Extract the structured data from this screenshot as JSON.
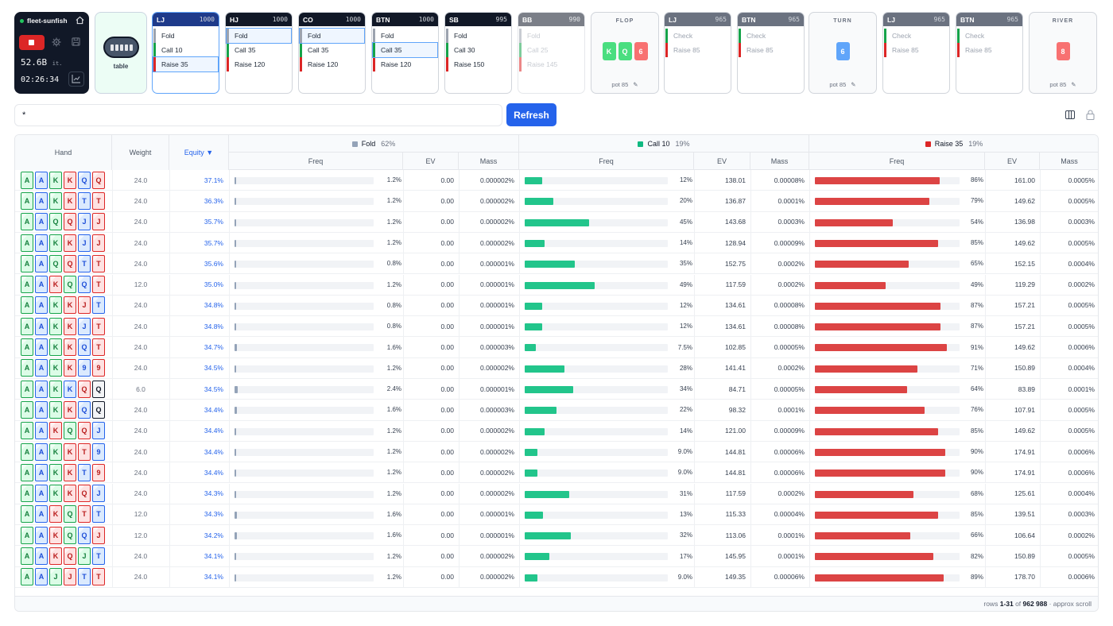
{
  "app": {
    "name": "fleet-sunfish",
    "speed": "52.6B",
    "speed_unit": "it.",
    "clock": "02:26:34"
  },
  "table_label": "table",
  "players": [
    {
      "pos": "LJ",
      "stack": "1000",
      "options": [
        "Fold",
        "Call 10",
        "Raise 35"
      ],
      "selected": 2,
      "active": true,
      "faded": false
    },
    {
      "pos": "HJ",
      "stack": "1000",
      "options": [
        "Fold",
        "Call 35",
        "Raise 120"
      ],
      "selected": 0,
      "active": false,
      "faded": false
    },
    {
      "pos": "CO",
      "stack": "1000",
      "options": [
        "Fold",
        "Call 35",
        "Raise 120"
      ],
      "selected": 0,
      "active": false,
      "faded": false
    },
    {
      "pos": "BTN",
      "stack": "1000",
      "options": [
        "Fold",
        "Call 35",
        "Raise 120"
      ],
      "selected": 1,
      "active": false,
      "faded": false
    },
    {
      "pos": "SB",
      "stack": "995",
      "options": [
        "Fold",
        "Call 30",
        "Raise 150"
      ],
      "selected": -1,
      "active": false,
      "faded": false
    },
    {
      "pos": "BB",
      "stack": "990",
      "options": [
        "Fold",
        "Call 25",
        "Raise 145"
      ],
      "selected": -1,
      "active": false,
      "faded": true
    }
  ],
  "flop": {
    "label": "FLOP",
    "cards": [
      {
        "rank": "K",
        "color": "#4ade80"
      },
      {
        "rank": "Q",
        "color": "#4ade80"
      },
      {
        "rank": "6",
        "color": "#f87171"
      }
    ],
    "pot": "pot 85"
  },
  "flop_players": [
    {
      "pos": "LJ",
      "stack": "965",
      "options": [
        "Check",
        "Raise 85"
      ]
    },
    {
      "pos": "BTN",
      "stack": "965",
      "options": [
        "Check",
        "Raise 85"
      ]
    }
  ],
  "turn": {
    "label": "TURN",
    "cards": [
      {
        "rank": "6",
        "color": "#60a5fa"
      }
    ],
    "pot": "pot 85"
  },
  "turn_players": [
    {
      "pos": "LJ",
      "stack": "965",
      "options": [
        "Check",
        "Raise 85"
      ]
    },
    {
      "pos": "BTN",
      "stack": "965",
      "options": [
        "Check",
        "Raise 85"
      ]
    }
  ],
  "river": {
    "label": "RIVER",
    "cards": [
      {
        "rank": "8",
        "color": "#f87171"
      }
    ],
    "pot": "pot 85"
  },
  "search": {
    "value": "*"
  },
  "refresh_label": "Refresh",
  "columns": {
    "hand": "Hand",
    "weight": "Weight",
    "equity": "Equity ▼",
    "groups": [
      {
        "label": "Fold",
        "pct": "62%",
        "color": "#94a3b8"
      },
      {
        "label": "Call 10",
        "pct": "19%",
        "color": "#10b981"
      },
      {
        "label": "Raise 35",
        "pct": "19%",
        "color": "#dc2626"
      }
    ],
    "freq": "Freq",
    "ev": "EV",
    "mass": "Mass"
  },
  "colors": {
    "fold": "#94a3b8",
    "call": "#22c58b",
    "raise": "#dc4444"
  },
  "rows": [
    {
      "cards": [
        [
          "A",
          "s"
        ],
        [
          "A",
          "d"
        ],
        [
          "K",
          "s"
        ],
        [
          "K",
          "h"
        ],
        [
          "Q",
          "d"
        ],
        [
          "Q",
          "h"
        ]
      ],
      "w": "24.0",
      "eq": "37.1%",
      "f": 1.2,
      "fl": "1.2%",
      "fev": "0.00",
      "fm": "0.000002%",
      "c": 12,
      "cl": "12%",
      "cev": "138.01",
      "cm": "0.00008%",
      "r": 86,
      "rl": "86%",
      "rev": "161.00",
      "rm": "0.0005%"
    },
    {
      "cards": [
        [
          "A",
          "s"
        ],
        [
          "A",
          "d"
        ],
        [
          "K",
          "s"
        ],
        [
          "K",
          "h"
        ],
        [
          "T",
          "d"
        ],
        [
          "T",
          "h"
        ]
      ],
      "w": "24.0",
      "eq": "36.3%",
      "f": 1.2,
      "fl": "1.2%",
      "fev": "0.00",
      "fm": "0.000002%",
      "c": 20,
      "cl": "20%",
      "cev": "136.87",
      "cm": "0.0001%",
      "r": 79,
      "rl": "79%",
      "rev": "149.62",
      "rm": "0.0005%"
    },
    {
      "cards": [
        [
          "A",
          "s"
        ],
        [
          "A",
          "d"
        ],
        [
          "Q",
          "s"
        ],
        [
          "Q",
          "h"
        ],
        [
          "J",
          "d"
        ],
        [
          "J",
          "h"
        ]
      ],
      "w": "24.0",
      "eq": "35.7%",
      "f": 1.2,
      "fl": "1.2%",
      "fev": "0.00",
      "fm": "0.000002%",
      "c": 45,
      "cl": "45%",
      "cev": "143.68",
      "cm": "0.0003%",
      "r": 54,
      "rl": "54%",
      "rev": "136.98",
      "rm": "0.0003%"
    },
    {
      "cards": [
        [
          "A",
          "s"
        ],
        [
          "A",
          "d"
        ],
        [
          "K",
          "s"
        ],
        [
          "K",
          "h"
        ],
        [
          "J",
          "d"
        ],
        [
          "J",
          "h"
        ]
      ],
      "w": "24.0",
      "eq": "35.7%",
      "f": 1.2,
      "fl": "1.2%",
      "fev": "0.00",
      "fm": "0.000002%",
      "c": 14,
      "cl": "14%",
      "cev": "128.94",
      "cm": "0.00009%",
      "r": 85,
      "rl": "85%",
      "rev": "149.62",
      "rm": "0.0005%"
    },
    {
      "cards": [
        [
          "A",
          "s"
        ],
        [
          "A",
          "d"
        ],
        [
          "Q",
          "s"
        ],
        [
          "Q",
          "h"
        ],
        [
          "T",
          "d"
        ],
        [
          "T",
          "h"
        ]
      ],
      "w": "24.0",
      "eq": "35.6%",
      "f": 0.8,
      "fl": "0.8%",
      "fev": "0.00",
      "fm": "0.000001%",
      "c": 35,
      "cl": "35%",
      "cev": "152.75",
      "cm": "0.0002%",
      "r": 65,
      "rl": "65%",
      "rev": "152.15",
      "rm": "0.0004%"
    },
    {
      "cards": [
        [
          "A",
          "s"
        ],
        [
          "A",
          "d"
        ],
        [
          "K",
          "h"
        ],
        [
          "Q",
          "s"
        ],
        [
          "Q",
          "d"
        ],
        [
          "T",
          "h"
        ]
      ],
      "w": "12.0",
      "eq": "35.0%",
      "f": 1.2,
      "fl": "1.2%",
      "fev": "0.00",
      "fm": "0.000001%",
      "c": 49,
      "cl": "49%",
      "cev": "117.59",
      "cm": "0.0002%",
      "r": 49,
      "rl": "49%",
      "rev": "119.29",
      "rm": "0.0002%"
    },
    {
      "cards": [
        [
          "A",
          "s"
        ],
        [
          "A",
          "d"
        ],
        [
          "K",
          "s"
        ],
        [
          "K",
          "h"
        ],
        [
          "J",
          "h"
        ],
        [
          "T",
          "d"
        ]
      ],
      "w": "24.0",
      "eq": "34.8%",
      "f": 0.8,
      "fl": "0.8%",
      "fev": "0.00",
      "fm": "0.000001%",
      "c": 12,
      "cl": "12%",
      "cev": "134.61",
      "cm": "0.00008%",
      "r": 87,
      "rl": "87%",
      "rev": "157.21",
      "rm": "0.0005%"
    },
    {
      "cards": [
        [
          "A",
          "s"
        ],
        [
          "A",
          "d"
        ],
        [
          "K",
          "s"
        ],
        [
          "K",
          "h"
        ],
        [
          "J",
          "d"
        ],
        [
          "T",
          "h"
        ]
      ],
      "w": "24.0",
      "eq": "34.8%",
      "f": 0.8,
      "fl": "0.8%",
      "fev": "0.00",
      "fm": "0.000001%",
      "c": 12,
      "cl": "12%",
      "cev": "134.61",
      "cm": "0.00008%",
      "r": 87,
      "rl": "87%",
      "rev": "157.21",
      "rm": "0.0005%"
    },
    {
      "cards": [
        [
          "A",
          "s"
        ],
        [
          "A",
          "d"
        ],
        [
          "K",
          "s"
        ],
        [
          "K",
          "h"
        ],
        [
          "Q",
          "d"
        ],
        [
          "T",
          "h"
        ]
      ],
      "w": "24.0",
      "eq": "34.7%",
      "f": 1.6,
      "fl": "1.6%",
      "fev": "0.00",
      "fm": "0.000003%",
      "c": 7.5,
      "cl": "7.5%",
      "cev": "102.85",
      "cm": "0.00005%",
      "r": 91,
      "rl": "91%",
      "rev": "149.62",
      "rm": "0.0006%"
    },
    {
      "cards": [
        [
          "A",
          "s"
        ],
        [
          "A",
          "d"
        ],
        [
          "K",
          "s"
        ],
        [
          "K",
          "h"
        ],
        [
          "9",
          "d"
        ],
        [
          "9",
          "h"
        ]
      ],
      "w": "24.0",
      "eq": "34.5%",
      "f": 1.2,
      "fl": "1.2%",
      "fev": "0.00",
      "fm": "0.000002%",
      "c": 28,
      "cl": "28%",
      "cev": "141.41",
      "cm": "0.0002%",
      "r": 71,
      "rl": "71%",
      "rev": "150.89",
      "rm": "0.0004%"
    },
    {
      "cards": [
        [
          "A",
          "s"
        ],
        [
          "A",
          "d"
        ],
        [
          "K",
          "s"
        ],
        [
          "K",
          "d"
        ],
        [
          "Q",
          "h"
        ],
        [
          "Q",
          "c"
        ]
      ],
      "w": "6.0",
      "eq": "34.5%",
      "f": 2.4,
      "fl": "2.4%",
      "fev": "0.00",
      "fm": "0.000001%",
      "c": 34,
      "cl": "34%",
      "cev": "84.71",
      "cm": "0.00005%",
      "r": 64,
      "rl": "64%",
      "rev": "83.89",
      "rm": "0.0001%"
    },
    {
      "cards": [
        [
          "A",
          "s"
        ],
        [
          "A",
          "d"
        ],
        [
          "K",
          "s"
        ],
        [
          "K",
          "h"
        ],
        [
          "Q",
          "d"
        ],
        [
          "Q",
          "c"
        ]
      ],
      "w": "24.0",
      "eq": "34.4%",
      "f": 1.6,
      "fl": "1.6%",
      "fev": "0.00",
      "fm": "0.000003%",
      "c": 22,
      "cl": "22%",
      "cev": "98.32",
      "cm": "0.0001%",
      "r": 76,
      "rl": "76%",
      "rev": "107.91",
      "rm": "0.0005%"
    },
    {
      "cards": [
        [
          "A",
          "s"
        ],
        [
          "A",
          "d"
        ],
        [
          "K",
          "h"
        ],
        [
          "Q",
          "s"
        ],
        [
          "Q",
          "h"
        ],
        [
          "J",
          "d"
        ]
      ],
      "w": "24.0",
      "eq": "34.4%",
      "f": 1.2,
      "fl": "1.2%",
      "fev": "0.00",
      "fm": "0.000002%",
      "c": 14,
      "cl": "14%",
      "cev": "121.00",
      "cm": "0.00009%",
      "r": 85,
      "rl": "85%",
      "rev": "149.62",
      "rm": "0.0005%"
    },
    {
      "cards": [
        [
          "A",
          "s"
        ],
        [
          "A",
          "d"
        ],
        [
          "K",
          "s"
        ],
        [
          "K",
          "h"
        ],
        [
          "T",
          "h"
        ],
        [
          "9",
          "d"
        ]
      ],
      "w": "24.0",
      "eq": "34.4%",
      "f": 1.2,
      "fl": "1.2%",
      "fev": "0.00",
      "fm": "0.000002%",
      "c": 9.0,
      "cl": "9.0%",
      "cev": "144.81",
      "cm": "0.00006%",
      "r": 90,
      "rl": "90%",
      "rev": "174.91",
      "rm": "0.0006%"
    },
    {
      "cards": [
        [
          "A",
          "s"
        ],
        [
          "A",
          "d"
        ],
        [
          "K",
          "s"
        ],
        [
          "K",
          "h"
        ],
        [
          "T",
          "d"
        ],
        [
          "9",
          "h"
        ]
      ],
      "w": "24.0",
      "eq": "34.4%",
      "f": 1.2,
      "fl": "1.2%",
      "fev": "0.00",
      "fm": "0.000002%",
      "c": 9.0,
      "cl": "9.0%",
      "cev": "144.81",
      "cm": "0.00006%",
      "r": 90,
      "rl": "90%",
      "rev": "174.91",
      "rm": "0.0006%"
    },
    {
      "cards": [
        [
          "A",
          "s"
        ],
        [
          "A",
          "d"
        ],
        [
          "K",
          "s"
        ],
        [
          "K",
          "h"
        ],
        [
          "Q",
          "h"
        ],
        [
          "J",
          "d"
        ]
      ],
      "w": "24.0",
      "eq": "34.3%",
      "f": 1.2,
      "fl": "1.2%",
      "fev": "0.00",
      "fm": "0.000002%",
      "c": 31,
      "cl": "31%",
      "cev": "117.59",
      "cm": "0.0002%",
      "r": 68,
      "rl": "68%",
      "rev": "125.61",
      "rm": "0.0004%"
    },
    {
      "cards": [
        [
          "A",
          "s"
        ],
        [
          "A",
          "d"
        ],
        [
          "K",
          "h"
        ],
        [
          "Q",
          "s"
        ],
        [
          "T",
          "h"
        ],
        [
          "T",
          "d"
        ]
      ],
      "w": "12.0",
      "eq": "34.3%",
      "f": 1.6,
      "fl": "1.6%",
      "fev": "0.00",
      "fm": "0.000001%",
      "c": 13,
      "cl": "13%",
      "cev": "115.33",
      "cm": "0.00004%",
      "r": 85,
      "rl": "85%",
      "rev": "139.51",
      "rm": "0.0003%"
    },
    {
      "cards": [
        [
          "A",
          "s"
        ],
        [
          "A",
          "d"
        ],
        [
          "K",
          "h"
        ],
        [
          "Q",
          "s"
        ],
        [
          "Q",
          "d"
        ],
        [
          "J",
          "h"
        ]
      ],
      "w": "12.0",
      "eq": "34.2%",
      "f": 1.6,
      "fl": "1.6%",
      "fev": "0.00",
      "fm": "0.000001%",
      "c": 32,
      "cl": "32%",
      "cev": "113.06",
      "cm": "0.0001%",
      "r": 66,
      "rl": "66%",
      "rev": "106.64",
      "rm": "0.0002%"
    },
    {
      "cards": [
        [
          "A",
          "s"
        ],
        [
          "A",
          "d"
        ],
        [
          "K",
          "h"
        ],
        [
          "Q",
          "h"
        ],
        [
          "J",
          "s"
        ],
        [
          "T",
          "d"
        ]
      ],
      "w": "24.0",
      "eq": "34.1%",
      "f": 1.2,
      "fl": "1.2%",
      "fev": "0.00",
      "fm": "0.000002%",
      "c": 17,
      "cl": "17%",
      "cev": "145.95",
      "cm": "0.0001%",
      "r": 82,
      "rl": "82%",
      "rev": "150.89",
      "rm": "0.0005%"
    },
    {
      "cards": [
        [
          "A",
          "s"
        ],
        [
          "A",
          "d"
        ],
        [
          "J",
          "s"
        ],
        [
          "J",
          "h"
        ],
        [
          "T",
          "d"
        ],
        [
          "T",
          "h"
        ]
      ],
      "w": "24.0",
      "eq": "34.1%",
      "f": 1.2,
      "fl": "1.2%",
      "fev": "0.00",
      "fm": "0.000002%",
      "c": 9.0,
      "cl": "9.0%",
      "cev": "149.35",
      "cm": "0.00006%",
      "r": 89,
      "rl": "89%",
      "rev": "178.70",
      "rm": "0.0006%"
    }
  ],
  "footer": {
    "prefix": "rows ",
    "range": "1-31",
    "of": " of ",
    "total": "962 988",
    "suffix": " · approx scroll"
  }
}
